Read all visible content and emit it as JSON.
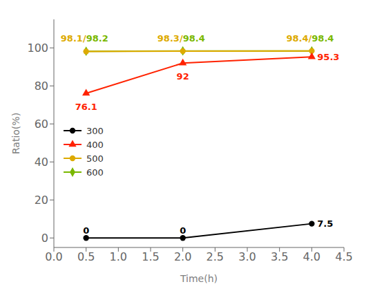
{
  "chart_data": {
    "type": "line",
    "x": [
      0.5,
      2.0,
      4.0
    ],
    "series": [
      {
        "name": "300",
        "color": "#000000",
        "marker": "circle",
        "values": [
          0,
          0,
          7.5
        ]
      },
      {
        "name": "400",
        "color": "#ff2200",
        "marker": "triangle",
        "values": [
          76.1,
          92,
          95.3
        ]
      },
      {
        "name": "500",
        "color": "#ddaa00",
        "marker": "circle",
        "values": [
          98.1,
          98.3,
          98.4
        ]
      },
      {
        "name": "600",
        "color": "#7ab800",
        "marker": "diamond",
        "values": [
          98.2,
          98.4,
          98.4
        ]
      }
    ],
    "xlim": [
      0,
      4.5
    ],
    "ylim": [
      -5,
      115
    ],
    "xticks": [
      {
        "value": 0,
        "label": "0.0"
      },
      0.5,
      {
        "value": 1,
        "label": "1.0"
      },
      1.5,
      {
        "value": 2,
        "label": "2.0"
      },
      2.5,
      {
        "value": 3,
        "label": "3.0"
      },
      3.5,
      {
        "value": 4,
        "label": "4.0"
      },
      4.5
    ],
    "yticks": [
      0,
      20,
      40,
      60,
      80,
      100
    ],
    "xlabel": "Time(h)",
    "ylabel": "Ratio(%)",
    "legend": "left",
    "grid": false,
    "annotations": [
      {
        "x": 0.5,
        "y": 0,
        "text": "0",
        "color": "#000000",
        "position": "above"
      },
      {
        "x": 2.0,
        "y": 0,
        "text": "0",
        "color": "#000000",
        "position": "above"
      },
      {
        "x": 4.0,
        "y": 7.5,
        "text": "7.5",
        "color": "#000000",
        "position": "right"
      },
      {
        "x": 0.5,
        "y": 76.1,
        "text": "76.1",
        "color": "#ff2200",
        "position": "below"
      },
      {
        "x": 2.0,
        "y": 92,
        "text": "92",
        "color": "#ff2200",
        "position": "below"
      },
      {
        "x": 4.0,
        "y": 95.3,
        "text": "95.3",
        "color": "#ff2200",
        "position": "right"
      },
      {
        "x": 0.5,
        "y": 105,
        "text": "98.1/",
        "color": "#ddaa00",
        "position": "end"
      },
      {
        "x": 0.5,
        "y": 105,
        "text": "98.2",
        "color": "#7ab800",
        "position": "start"
      },
      {
        "x": 2.0,
        "y": 105,
        "text": "98.3/",
        "color": "#ddaa00",
        "position": "end"
      },
      {
        "x": 2.0,
        "y": 105,
        "text": "98.4",
        "color": "#7ab800",
        "position": "start"
      },
      {
        "x": 4.0,
        "y": 105,
        "text": "98.4/",
        "color": "#ddaa00",
        "position": "end"
      },
      {
        "x": 4.0,
        "y": 105,
        "text": "98.4",
        "color": "#7ab800",
        "position": "start"
      }
    ]
  }
}
